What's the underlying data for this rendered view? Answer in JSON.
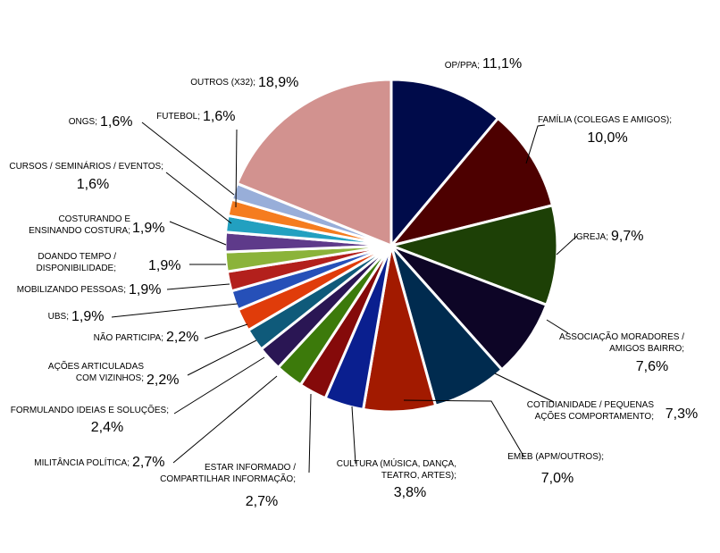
{
  "chart_data": {
    "type": "pie",
    "title": "",
    "slices": [
      {
        "name": "OP/PPA",
        "value": 11.1,
        "label": "11,1%",
        "color": "#000b4a"
      },
      {
        "name": "FAMÍLIA (COLEGAS E AMIGOS)",
        "value": 10.0,
        "label": "10,0%",
        "color": "#4d0000"
      },
      {
        "name": "IGREJA",
        "value": 9.7,
        "label": "9,7%",
        "color": "#1d4006"
      },
      {
        "name": "ASSOCIAÇÃO MORADORES / AMIGOS BAIRRO",
        "value": 7.6,
        "label": "7,6%",
        "color": "#0d0526"
      },
      {
        "name": "COTIDIANIDADE / PEQUENAS AÇÕES COMPORTAMENTO",
        "value": 7.3,
        "label": "7,3%",
        "color": "#002b4f"
      },
      {
        "name": "EMEB (APM/OUTROS)",
        "value": 7.0,
        "label": "7,0%",
        "color": "#a21a00"
      },
      {
        "name": "CULTURA (MÚSICA, DANÇA, TEATRO, ARTES)",
        "value": 3.8,
        "label": "3,8%",
        "color": "#0a1f8f"
      },
      {
        "name": "ESTAR INFORMADO / COMPARTILHAR INFORMAÇÃO",
        "value": 2.7,
        "label": "2,7%",
        "color": "#850a0a"
      },
      {
        "name": "MILITÂNCIA POLÍTICA",
        "value": 2.7,
        "label": "2,7%",
        "color": "#3c7a0b"
      },
      {
        "name": "FORMULANDO IDEIAS E SOLUÇÕES",
        "value": 2.4,
        "label": "2,4%",
        "color": "#2a1654"
      },
      {
        "name": "AÇÕES ARTICULADAS COM VIZINHOS",
        "value": 2.2,
        "label": "2,2%",
        "color": "#0f5a7a"
      },
      {
        "name": "NÃO PARTICIPA",
        "value": 2.2,
        "label": "2,2%",
        "color": "#e03c0a"
      },
      {
        "name": "UBS",
        "value": 1.9,
        "label": "1,9%",
        "color": "#2650b8"
      },
      {
        "name": "MOBILIZANDO PESSOAS",
        "value": 1.9,
        "label": "1,9%",
        "color": "#b3201c"
      },
      {
        "name": "DOANDO TEMPO / DISPONIBILIDADE",
        "value": 1.9,
        "label": "1,9%",
        "color": "#8bb33a"
      },
      {
        "name": "COSTURANDO E ENSINANDO COSTURA",
        "value": 1.9,
        "label": "1,9%",
        "color": "#5e3a8a"
      },
      {
        "name": "CURSOS / SEMINÁRIOS / EVENTOS",
        "value": 1.6,
        "label": "1,6%",
        "color": "#22a0c0"
      },
      {
        "name": "FUTEBOL",
        "value": 1.6,
        "label": "1,6%",
        "color": "#f57c1f"
      },
      {
        "name": "ONGS",
        "value": 1.6,
        "label": "1,6%",
        "color": "#98aed9"
      },
      {
        "name": "OUTROS (X32)",
        "value": 18.9,
        "label": "18,9%",
        "color": "#d2928f"
      }
    ],
    "labels": [
      {
        "lines": [
          "OP/PPA;"
        ],
        "value": "11,1%"
      },
      {
        "lines": [
          "FAMÍLIA (COLEGAS E AMIGOS);"
        ],
        "value": "10,0%"
      },
      {
        "lines": [
          "IGREJA;"
        ],
        "value": "9,7%"
      },
      {
        "lines": [
          "ASSOCIAÇÃO MORADORES  /",
          "AMIGOS BAIRRO;"
        ],
        "value": "7,6%"
      },
      {
        "lines": [
          "COTIDIANIDADE / PEQUENAS",
          "AÇÕES COMPORTAMENTO;"
        ],
        "value": "7,3%"
      },
      {
        "lines": [
          "EMEB (APM/OUTROS);"
        ],
        "value": "7,0%"
      },
      {
        "lines": [
          "CULTURA (MÚSICA,  DANÇA,",
          "TEATRO,  ARTES);"
        ],
        "value": "3,8%"
      },
      {
        "lines": [
          "ESTAR INFORMADO  /",
          "COMPARTILHAR INFORMAÇÃO;"
        ],
        "value": "2,7%"
      },
      {
        "lines": [
          "MILITÂNCIA POLÍTICA;"
        ],
        "value": "2,7%"
      },
      {
        "lines": [
          "FORMULANDO IDEIAS E SOLUÇÕES;"
        ],
        "value": "2,4%"
      },
      {
        "lines": [
          "AÇÕES ARTICULADAS",
          "COM VIZINHOS;"
        ],
        "value": "2,2%"
      },
      {
        "lines": [
          "NÃO PARTICIPA;"
        ],
        "value": "2,2%"
      },
      {
        "lines": [
          "UBS;"
        ],
        "value": "1,9%"
      },
      {
        "lines": [
          "MOBILIZANDO PESSOAS;"
        ],
        "value": "1,9%"
      },
      {
        "lines": [
          "DOANDO TEMPO  /",
          "DISPONIBILIDADE;"
        ],
        "value": "1,9%"
      },
      {
        "lines": [
          "COSTURANDO E",
          "ENSINANDO COSTURA;"
        ],
        "value": "1,9%"
      },
      {
        "lines": [
          "CURSOS / SEMINÁRIOS  / EVENTOS;"
        ],
        "value": "1,6%"
      },
      {
        "lines": [
          "FUTEBOL;"
        ],
        "value": "1,6%"
      },
      {
        "lines": [
          "ONGS;"
        ],
        "value": "1,6%"
      },
      {
        "lines": [
          "OUTROS (X32);"
        ],
        "value": "18,9%"
      }
    ]
  }
}
